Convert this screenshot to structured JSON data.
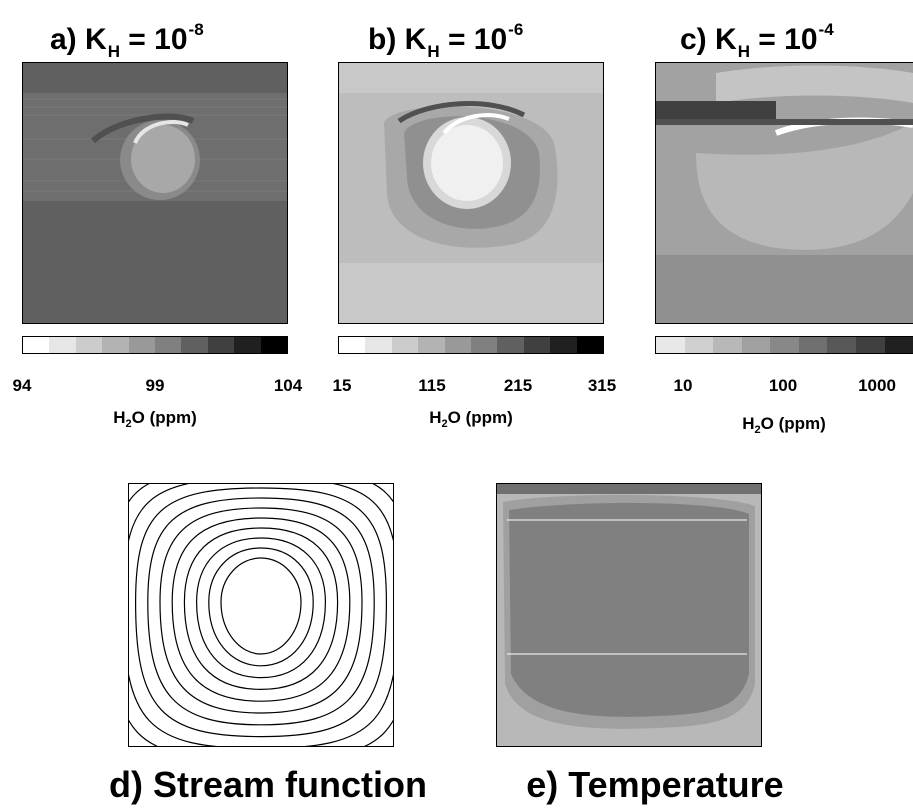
{
  "panels": {
    "a": {
      "prefix": "a) K",
      "subscript": "H",
      "equals": " = 10",
      "exponent": "-8",
      "ticks": [
        "94",
        "99",
        "104"
      ],
      "unit_prefix": "H",
      "unit_sub": "2",
      "unit_suffix": "O (ppm)"
    },
    "b": {
      "prefix": "b) K",
      "subscript": "H",
      "equals": " = 10",
      "exponent": "-6",
      "ticks": [
        "15",
        "115",
        "215",
        "315"
      ],
      "unit_prefix": "H",
      "unit_sub": "2",
      "unit_suffix": "O (ppm)"
    },
    "c": {
      "prefix": "c) K",
      "subscript": "H",
      "equals": " = 10",
      "exponent": "-4",
      "ticks": [
        "10",
        "100",
        "1000"
      ],
      "unit_prefix": "H",
      "unit_sub": "2",
      "unit_suffix": "O (ppm)"
    },
    "d": {
      "title": "d) Stream function"
    },
    "e": {
      "title": "e) Temperature"
    }
  },
  "colors": {
    "panel_a_bg": "#606060",
    "panel_b_bg": "#c8c8c8",
    "panel_c_bg": "#909090",
    "panel_e_bg": "#808080",
    "colorbar_a": [
      "#ffffff",
      "#e6e6e6",
      "#cccccc",
      "#b3b3b3",
      "#999999",
      "#808080",
      "#606060",
      "#404040",
      "#202020",
      "#000000"
    ],
    "colorbar_b": [
      "#ffffff",
      "#e6e6e6",
      "#cccccc",
      "#b3b3b3",
      "#999999",
      "#808080",
      "#606060",
      "#404040",
      "#202020",
      "#000000"
    ],
    "colorbar_c": [
      "#e8e8e8",
      "#d0d0d0",
      "#b8b8b8",
      "#a0a0a0",
      "#888888",
      "#707070",
      "#585858",
      "#404040",
      "#202020"
    ]
  }
}
